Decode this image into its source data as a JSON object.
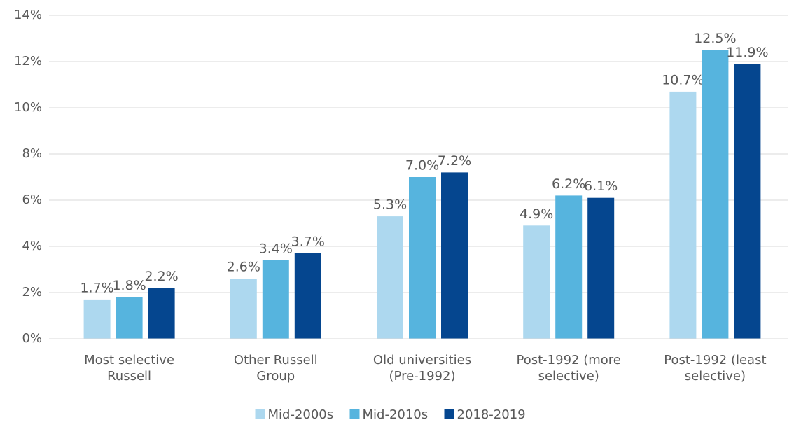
{
  "chart_data": {
    "type": "bar",
    "categories": [
      "Most selective Russell",
      "Other Russell Group",
      "Old universities (Pre-1992)",
      "Post-1992 (more selective)",
      "Post-1992 (least selective)"
    ],
    "series": [
      {
        "name": "Mid-2000s",
        "color": "#add8ef",
        "values": [
          1.7,
          2.6,
          5.3,
          4.9,
          10.7
        ],
        "value_labels": [
          "1.7%",
          "2.6%",
          "5.3%",
          "4.9%",
          "10.7%"
        ]
      },
      {
        "name": "Mid-2010s",
        "color": "#56b4de",
        "values": [
          1.8,
          3.4,
          7.0,
          6.2,
          12.5
        ],
        "value_labels": [
          "1.8%",
          "3.4%",
          "7.0%",
          "6.2%",
          "12.5%"
        ]
      },
      {
        "name": "2018-2019",
        "color": "#05468f",
        "values": [
          2.2,
          3.7,
          7.2,
          6.1,
          11.9
        ],
        "value_labels": [
          "2.2%",
          "3.7%",
          "7.2%",
          "6.1%",
          "11.9%"
        ]
      }
    ],
    "ylim": [
      0,
      14
    ],
    "yticks": [
      {
        "value": 0,
        "label": "0%"
      },
      {
        "value": 2,
        "label": "2%"
      },
      {
        "value": 4,
        "label": "4%"
      },
      {
        "value": 6,
        "label": "6%"
      },
      {
        "value": 8,
        "label": "8%"
      },
      {
        "value": 10,
        "label": "10%"
      },
      {
        "value": 12,
        "label": "12%"
      },
      {
        "value": 14,
        "label": "14%"
      }
    ],
    "grid": true,
    "legend": "bottom"
  }
}
